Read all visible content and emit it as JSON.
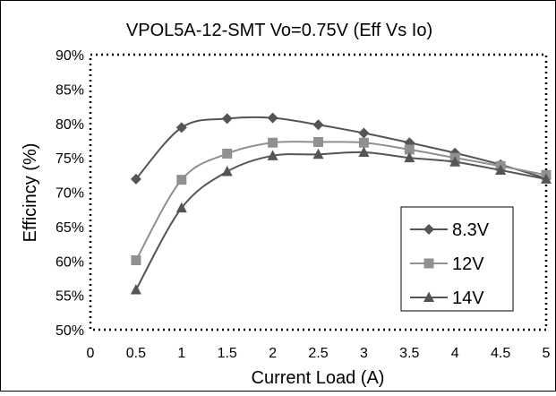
{
  "chart_data": {
    "type": "line",
    "title": "VPOL5A-12-SMT Vo=0.75V (Eff Vs Io)",
    "xlabel": "Current Load (A)",
    "ylabel": "Efficincy (%)",
    "xlim": [
      0,
      5
    ],
    "ylim": [
      50,
      90
    ],
    "x_ticks": [
      "0",
      "0.5",
      "1",
      "1.5",
      "2",
      "2.5",
      "3",
      "3.5",
      "4",
      "4.5",
      "5"
    ],
    "y_ticks": [
      "50%",
      "55%",
      "60%",
      "65%",
      "70%",
      "75%",
      "80%",
      "85%",
      "90%"
    ],
    "x": [
      0.5,
      1,
      1.5,
      2,
      2.5,
      3,
      3.5,
      4,
      4.5,
      5
    ],
    "grid": false,
    "legend_position": "bottom-right",
    "series": [
      {
        "name": "8.3V",
        "marker": "diamond",
        "color": "#555555",
        "values": [
          71.9,
          79.4,
          80.7,
          80.8,
          79.8,
          78.6,
          77.2,
          75.7,
          74.0,
          72.0
        ]
      },
      {
        "name": "12V",
        "marker": "square",
        "color": "#909090",
        "values": [
          60.1,
          71.8,
          75.6,
          77.2,
          77.3,
          77.2,
          76.2,
          75.0,
          73.8,
          72.5
        ]
      },
      {
        "name": "14V",
        "marker": "triangle",
        "color": "#555555",
        "values": [
          55.8,
          67.7,
          73.0,
          75.3,
          75.5,
          75.8,
          75.0,
          74.4,
          73.2,
          71.9
        ]
      }
    ]
  }
}
